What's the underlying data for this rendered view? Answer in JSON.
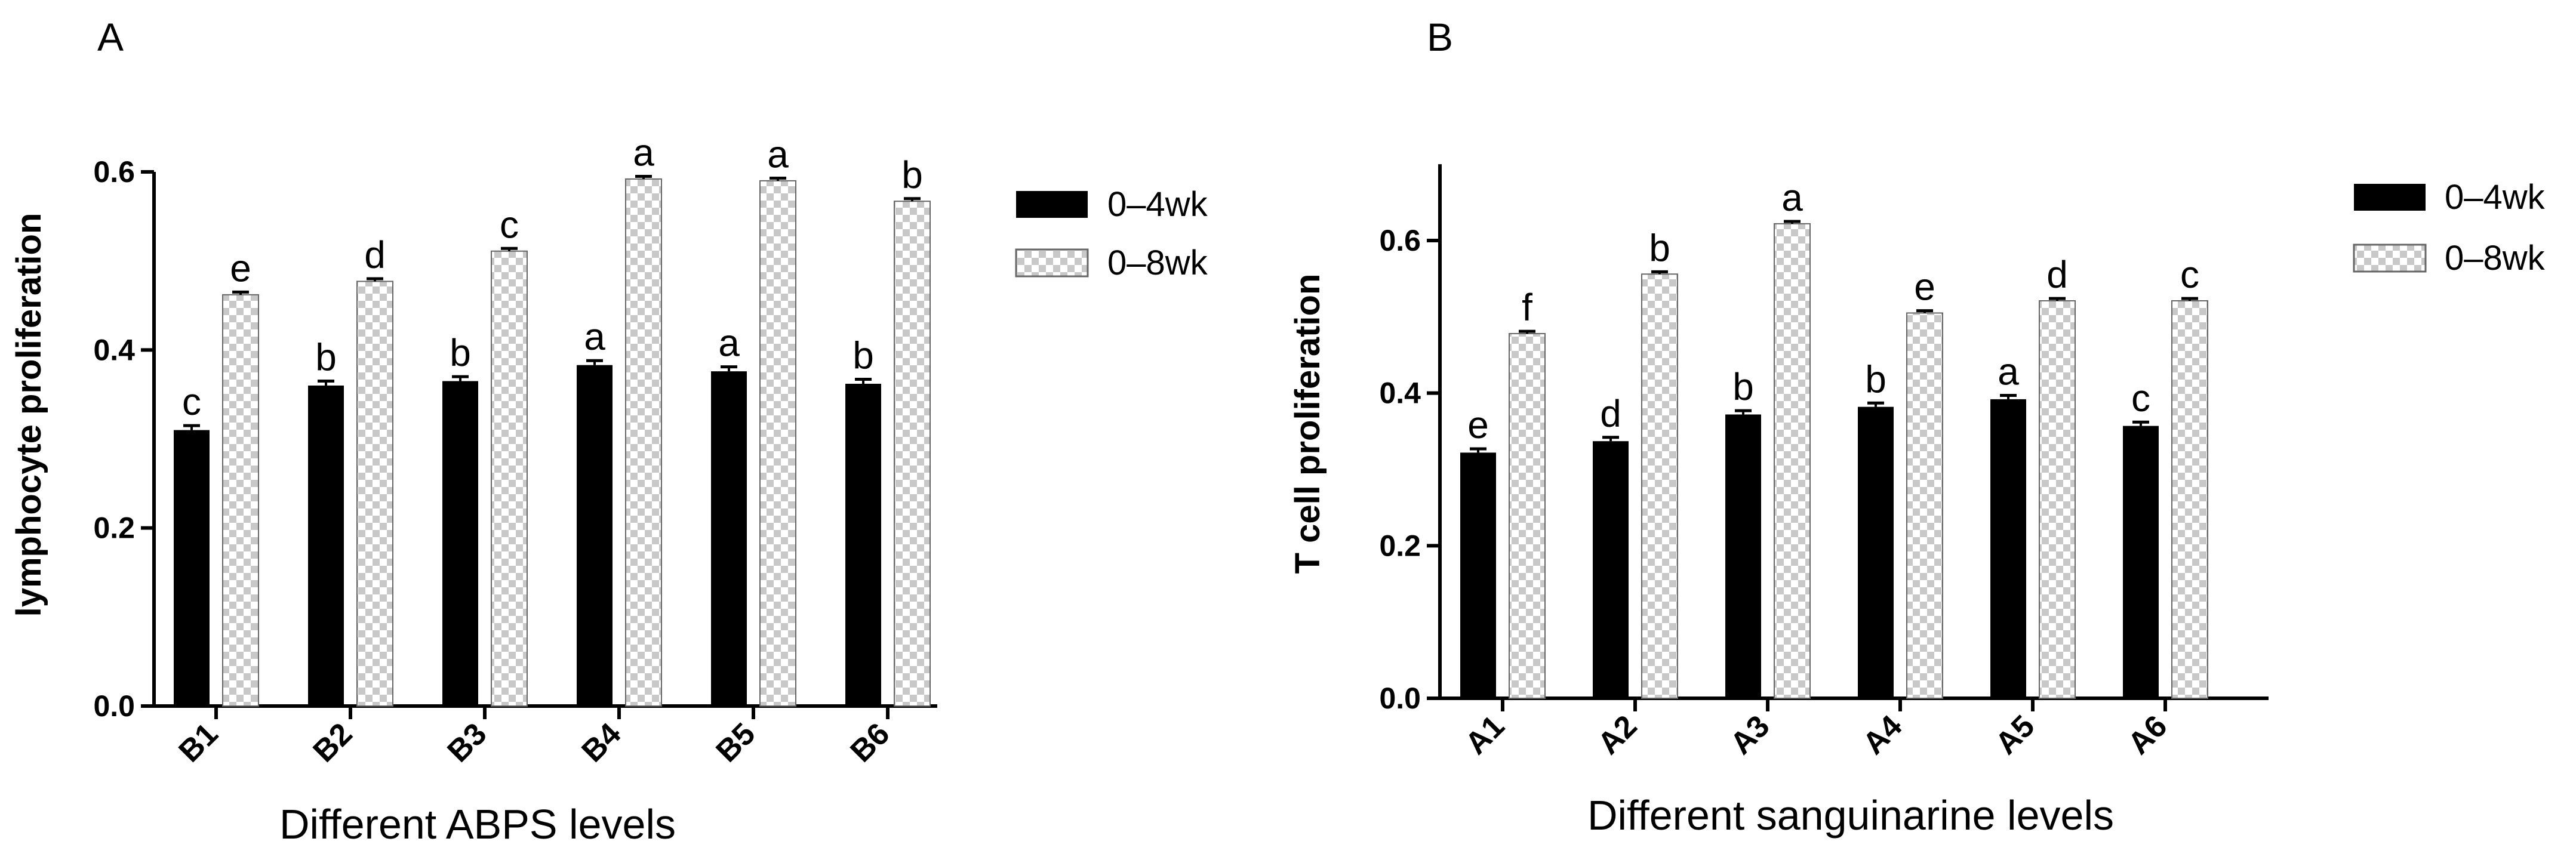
{
  "colors": {
    "series1": "#000000",
    "series2_light": "#ffffff",
    "series2_dark": "#c8c8c8",
    "axis": "#000000"
  },
  "chart_data": [
    {
      "panel_label": "A",
      "type": "bar",
      "title": "",
      "xlabel": "Different ABPS  levels",
      "ylabel": "lymphocyte proliferation",
      "categories": [
        "B1",
        "B2",
        "B3",
        "B4",
        "B5",
        "B6"
      ],
      "ylim": [
        0,
        0.6
      ],
      "yticks": [
        0.0,
        0.2,
        0.4,
        0.6
      ],
      "ytick_labels": [
        "0.0",
        "0.2",
        "0.4",
        "0.6"
      ],
      "legend_position": "right",
      "series": [
        {
          "name": "0–4wk",
          "pattern": "solid",
          "values": [
            0.31,
            0.36,
            0.365,
            0.383,
            0.376,
            0.362
          ],
          "errors": [
            0.005,
            0.005,
            0.005,
            0.005,
            0.005,
            0.005
          ],
          "letters": [
            "c",
            "b",
            "b",
            "a",
            "a",
            "b"
          ]
        },
        {
          "name": "0–8wk",
          "pattern": "checkered",
          "values": [
            0.462,
            0.477,
            0.511,
            0.592,
            0.59,
            0.567
          ],
          "errors": [
            0.003,
            0.003,
            0.003,
            0.003,
            0.003,
            0.003
          ],
          "letters": [
            "e",
            "d",
            "c",
            "a",
            "a",
            "b"
          ]
        }
      ]
    },
    {
      "panel_label": "B",
      "type": "bar",
      "title": "",
      "xlabel": "Different sanguinarine levels",
      "ylabel": "T cell proliferation",
      "categories": [
        "A1",
        "A2",
        "A3",
        "A4",
        "A5",
        "A6"
      ],
      "ylim": [
        0,
        0.7
      ],
      "yticks": [
        0.0,
        0.2,
        0.4,
        0.6
      ],
      "ytick_labels": [
        "0.0",
        "0.2",
        "0.4",
        "0.6"
      ],
      "legend_position": "right",
      "series": [
        {
          "name": "0–4wk",
          "pattern": "solid",
          "values": [
            0.322,
            0.337,
            0.372,
            0.382,
            0.392,
            0.357
          ],
          "errors": [
            0.005,
            0.005,
            0.005,
            0.005,
            0.005,
            0.005
          ],
          "letters": [
            "e",
            "d",
            "b",
            "b",
            "a",
            "c"
          ]
        },
        {
          "name": "0–8wk",
          "pattern": "checkered",
          "values": [
            0.478,
            0.556,
            0.622,
            0.505,
            0.521,
            0.521
          ],
          "errors": [
            0.003,
            0.003,
            0.003,
            0.003,
            0.003,
            0.003
          ],
          "letters": [
            "f",
            "b",
            "a",
            "e",
            "d",
            "c"
          ]
        }
      ]
    }
  ]
}
